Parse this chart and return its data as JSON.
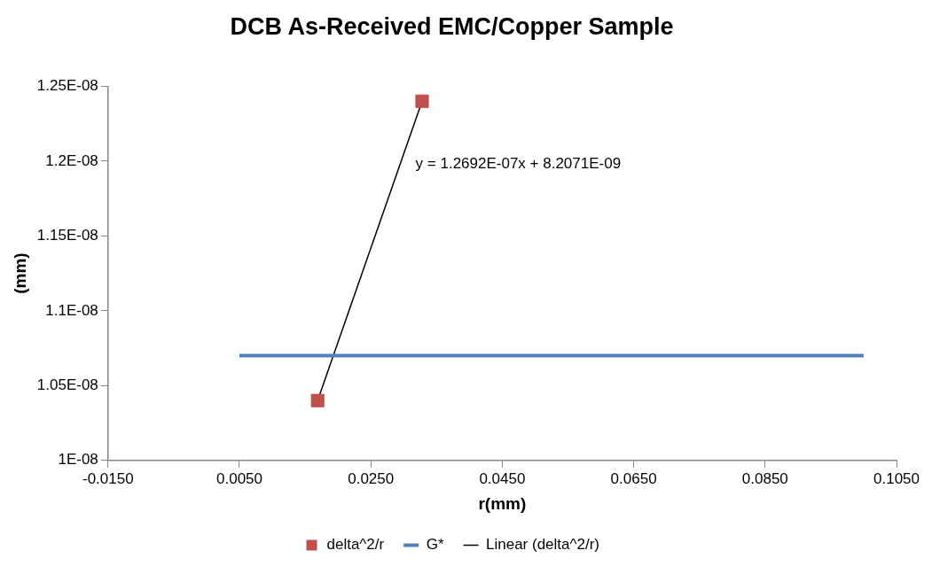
{
  "chart_data": {
    "type": "scatter",
    "title": "DCB As-Received EMC/Copper Sample",
    "xlabel": "r(mm)",
    "ylabel": "(mm)",
    "xlim": [
      -0.015,
      0.105
    ],
    "xticks": [
      {
        "value": -0.015,
        "label": "-0.0150"
      },
      {
        "value": 0.005,
        "label": "0.0050"
      },
      {
        "value": 0.025,
        "label": "0.0250"
      },
      {
        "value": 0.045,
        "label": "0.0450"
      },
      {
        "value": 0.065,
        "label": "0.0650"
      },
      {
        "value": 0.085,
        "label": "0.0850"
      },
      {
        "value": 0.105,
        "label": "0.1050"
      }
    ],
    "ylim": [
      1e-08,
      1.25e-08
    ],
    "yticks": [
      {
        "value": 1e-08,
        "label": "1E-08"
      },
      {
        "value": 1.05e-08,
        "label": "1.05E-08"
      },
      {
        "value": 1.1e-08,
        "label": "1.1E-08"
      },
      {
        "value": 1.15e-08,
        "label": "1.15E-08"
      },
      {
        "value": 1.2e-08,
        "label": "1.2E-08"
      },
      {
        "value": 1.25e-08,
        "label": "1.25E-08"
      }
    ],
    "series": [
      {
        "name": "delta^2/r",
        "marker": "square",
        "color": "#c0504d",
        "x": [
          0.0169,
          0.0328
        ],
        "values": [
          1.04e-08,
          1.24e-08
        ]
      },
      {
        "name": "G*",
        "type": "line",
        "marker": "none",
        "color": "#4f81bd",
        "x": [
          0.005,
          0.1
        ],
        "values": [
          1.07e-08,
          1.07e-08
        ]
      },
      {
        "name": "Linear (delta^2/r)",
        "type": "line",
        "marker": "none",
        "color": "#000000",
        "x": [
          0.0169,
          0.0328
        ],
        "values": [
          1.04e-08,
          1.24e-08
        ]
      }
    ],
    "annotations": [
      "y = 1.2692E-07x + 8.2071E-09"
    ],
    "legend": "bottom"
  }
}
